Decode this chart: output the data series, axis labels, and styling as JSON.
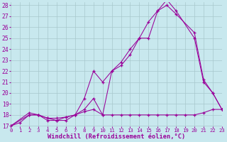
{
  "xlabel": "Windchill (Refroidissement éolien,°C)",
  "bg_color": "#c8e8ee",
  "grid_color": "#a8c8cc",
  "line_color": "#990099",
  "xmin": 0,
  "xmax": 23,
  "ymin": 17,
  "ymax": 28,
  "line1_x": [
    0,
    1,
    2,
    3,
    4,
    5,
    6,
    7,
    8,
    9,
    10,
    11,
    12,
    13,
    14,
    15,
    16,
    17,
    18,
    19,
    20,
    21,
    22,
    23
  ],
  "line1_y": [
    17.0,
    17.3,
    18.0,
    18.0,
    17.7,
    17.5,
    17.5,
    18.0,
    18.3,
    18.5,
    18.0,
    18.0,
    18.0,
    18.0,
    18.0,
    18.0,
    18.0,
    18.0,
    18.0,
    18.0,
    18.0,
    18.2,
    18.5,
    18.5
  ],
  "line2_x": [
    0,
    2,
    3,
    4,
    5,
    6,
    7,
    8,
    9,
    10,
    11,
    12,
    13,
    14,
    15,
    16,
    17,
    18,
    20,
    21,
    22,
    23
  ],
  "line2_y": [
    17.0,
    18.2,
    18.0,
    17.7,
    17.7,
    17.8,
    18.0,
    19.5,
    22.0,
    21.0,
    22.0,
    22.8,
    24.0,
    25.0,
    26.5,
    27.5,
    28.5,
    27.5,
    25.0,
    21.0,
    20.0,
    18.5
  ],
  "line3_x": [
    0,
    2,
    3,
    4,
    5,
    6,
    7,
    8,
    9,
    10,
    11,
    12,
    13,
    14,
    15,
    16,
    17,
    18,
    20,
    21,
    22,
    23
  ],
  "line3_y": [
    17.0,
    18.0,
    18.0,
    17.5,
    17.5,
    17.8,
    18.0,
    18.5,
    19.5,
    18.0,
    22.0,
    22.5,
    23.5,
    25.0,
    25.0,
    27.5,
    28.0,
    27.2,
    25.5,
    21.2,
    20.0,
    18.5
  ],
  "xtick_fontsize": 5.2,
  "ytick_fontsize": 5.8,
  "xlabel_fontsize": 6.2
}
